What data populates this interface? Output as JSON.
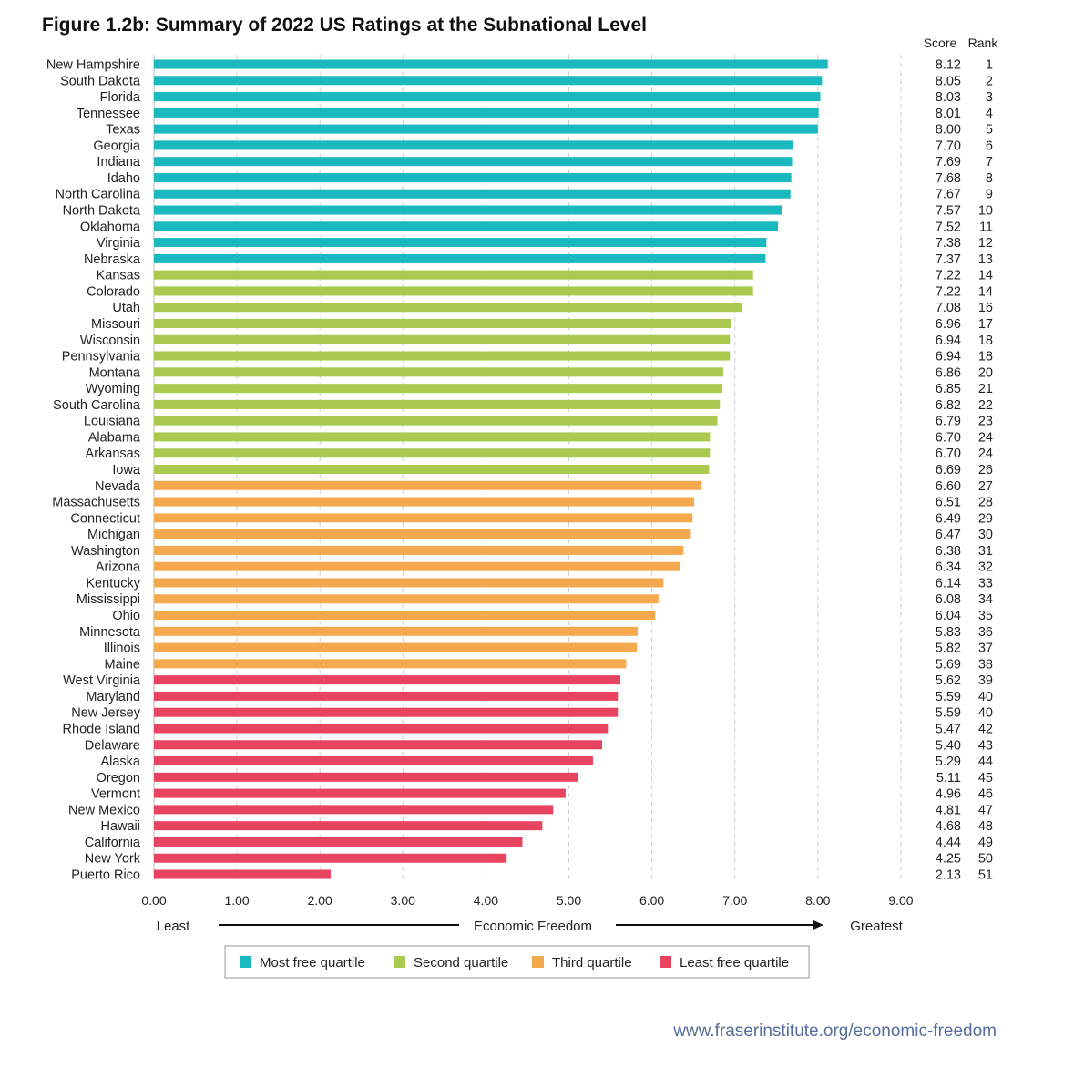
{
  "title": "Figure 1.2b: Summary of 2022 US Ratings at the Subnational Level",
  "source_url": "www.fraserinstitute.org/economic-freedom",
  "colors": {
    "most_free": "#1ab8bf",
    "second": "#a9c94f",
    "third": "#f5a94e",
    "least_free": "#e8435f",
    "grid": "#cfcfcf",
    "text": "#222222",
    "url": "#5a6e9a"
  },
  "chart_data": {
    "type": "bar",
    "orientation": "horizontal",
    "title": "Figure 1.2b: Summary of 2022 US Ratings at the Subnational Level",
    "xlim": [
      0,
      9
    ],
    "xticks": [
      "0.00",
      "1.00",
      "2.00",
      "3.00",
      "4.00",
      "5.00",
      "6.00",
      "7.00",
      "8.00",
      "9.00"
    ],
    "axis_labels": {
      "left": "Least",
      "center": "Economic Freedom",
      "right": "Greatest"
    },
    "table_headers": {
      "score": "Score",
      "rank": "Rank"
    },
    "legend": [
      {
        "key": "most_free",
        "label": "Most free quartile"
      },
      {
        "key": "second",
        "label": "Second quartile"
      },
      {
        "key": "third",
        "label": "Third quartile"
      },
      {
        "key": "least_free",
        "label": "Least free quartile"
      }
    ],
    "rows": [
      {
        "state": "New Hampshire",
        "score": 8.12,
        "score_label": "8.12",
        "rank": "1",
        "quartile": "most_free"
      },
      {
        "state": "South Dakota",
        "score": 8.05,
        "score_label": "8.05",
        "rank": "2",
        "quartile": "most_free"
      },
      {
        "state": "Florida",
        "score": 8.03,
        "score_label": "8.03",
        "rank": "3",
        "quartile": "most_free"
      },
      {
        "state": "Tennessee",
        "score": 8.01,
        "score_label": "8.01",
        "rank": "4",
        "quartile": "most_free"
      },
      {
        "state": "Texas",
        "score": 8.0,
        "score_label": "8.00",
        "rank": "5",
        "quartile": "most_free"
      },
      {
        "state": "Georgia",
        "score": 7.7,
        "score_label": "7.70",
        "rank": "6",
        "quartile": "most_free"
      },
      {
        "state": "Indiana",
        "score": 7.69,
        "score_label": "7.69",
        "rank": "7",
        "quartile": "most_free"
      },
      {
        "state": "Idaho",
        "score": 7.68,
        "score_label": "7.68",
        "rank": "8",
        "quartile": "most_free"
      },
      {
        "state": "North Carolina",
        "score": 7.67,
        "score_label": "7.67",
        "rank": "9",
        "quartile": "most_free"
      },
      {
        "state": "North Dakota",
        "score": 7.57,
        "score_label": "7.57",
        "rank": "10",
        "quartile": "most_free"
      },
      {
        "state": "Oklahoma",
        "score": 7.52,
        "score_label": "7.52",
        "rank": "11",
        "quartile": "most_free"
      },
      {
        "state": "Virginia",
        "score": 7.38,
        "score_label": "7.38",
        "rank": "12",
        "quartile": "most_free"
      },
      {
        "state": "Nebraska",
        "score": 7.37,
        "score_label": "7.37",
        "rank": "13",
        "quartile": "most_free"
      },
      {
        "state": "Kansas",
        "score": 7.22,
        "score_label": "7.22",
        "rank": "14",
        "quartile": "second"
      },
      {
        "state": "Colorado",
        "score": 7.22,
        "score_label": "7.22",
        "rank": "14",
        "quartile": "second"
      },
      {
        "state": "Utah",
        "score": 7.08,
        "score_label": "7.08",
        "rank": "16",
        "quartile": "second"
      },
      {
        "state": "Missouri",
        "score": 6.96,
        "score_label": "6.96",
        "rank": "17",
        "quartile": "second"
      },
      {
        "state": "Wisconsin",
        "score": 6.94,
        "score_label": "6.94",
        "rank": "18",
        "quartile": "second"
      },
      {
        "state": "Pennsylvania",
        "score": 6.94,
        "score_label": "6.94",
        "rank": "18",
        "quartile": "second"
      },
      {
        "state": "Montana",
        "score": 6.86,
        "score_label": "6.86",
        "rank": "20",
        "quartile": "second"
      },
      {
        "state": "Wyoming",
        "score": 6.85,
        "score_label": "6.85",
        "rank": "21",
        "quartile": "second"
      },
      {
        "state": "South Carolina",
        "score": 6.82,
        "score_label": "6.82",
        "rank": "22",
        "quartile": "second"
      },
      {
        "state": "Louisiana",
        "score": 6.79,
        "score_label": "6.79",
        "rank": "23",
        "quartile": "second"
      },
      {
        "state": "Alabama",
        "score": 6.7,
        "score_label": "6.70",
        "rank": "24",
        "quartile": "second"
      },
      {
        "state": "Arkansas",
        "score": 6.7,
        "score_label": "6.70",
        "rank": "24",
        "quartile": "second"
      },
      {
        "state": "Iowa",
        "score": 6.69,
        "score_label": "6.69",
        "rank": "26",
        "quartile": "second"
      },
      {
        "state": "Nevada",
        "score": 6.6,
        "score_label": "6.60",
        "rank": "27",
        "quartile": "third"
      },
      {
        "state": "Massachusetts",
        "score": 6.51,
        "score_label": "6.51",
        "rank": "28",
        "quartile": "third"
      },
      {
        "state": "Connecticut",
        "score": 6.49,
        "score_label": "6.49",
        "rank": "29",
        "quartile": "third"
      },
      {
        "state": "Michigan",
        "score": 6.47,
        "score_label": "6.47",
        "rank": "30",
        "quartile": "third"
      },
      {
        "state": "Washington",
        "score": 6.38,
        "score_label": "6.38",
        "rank": "31",
        "quartile": "third"
      },
      {
        "state": "Arizona",
        "score": 6.34,
        "score_label": "6.34",
        "rank": "32",
        "quartile": "third"
      },
      {
        "state": "Kentucky",
        "score": 6.14,
        "score_label": "6.14",
        "rank": "33",
        "quartile": "third"
      },
      {
        "state": "Mississippi",
        "score": 6.08,
        "score_label": "6.08",
        "rank": "34",
        "quartile": "third"
      },
      {
        "state": "Ohio",
        "score": 6.04,
        "score_label": "6.04",
        "rank": "35",
        "quartile": "third"
      },
      {
        "state": "Minnesota",
        "score": 5.83,
        "score_label": "5.83",
        "rank": "36",
        "quartile": "third"
      },
      {
        "state": "Illinois",
        "score": 5.82,
        "score_label": "5.82",
        "rank": "37",
        "quartile": "third"
      },
      {
        "state": "Maine",
        "score": 5.69,
        "score_label": "5.69",
        "rank": "38",
        "quartile": "third"
      },
      {
        "state": "West Virginia",
        "score": 5.62,
        "score_label": "5.62",
        "rank": "39",
        "quartile": "least_free"
      },
      {
        "state": "Maryland",
        "score": 5.59,
        "score_label": "5.59",
        "rank": "40",
        "quartile": "least_free"
      },
      {
        "state": "New Jersey",
        "score": 5.59,
        "score_label": "5.59",
        "rank": "40",
        "quartile": "least_free"
      },
      {
        "state": "Rhode Island",
        "score": 5.47,
        "score_label": "5.47",
        "rank": "42",
        "quartile": "least_free"
      },
      {
        "state": "Delaware",
        "score": 5.4,
        "score_label": "5.40",
        "rank": "43",
        "quartile": "least_free"
      },
      {
        "state": "Alaska",
        "score": 5.29,
        "score_label": "5.29",
        "rank": "44",
        "quartile": "least_free"
      },
      {
        "state": "Oregon",
        "score": 5.11,
        "score_label": "5.11",
        "rank": "45",
        "quartile": "least_free"
      },
      {
        "state": "Vermont",
        "score": 4.96,
        "score_label": "4.96",
        "rank": "46",
        "quartile": "least_free"
      },
      {
        "state": "New Mexico",
        "score": 4.81,
        "score_label": "4.81",
        "rank": "47",
        "quartile": "least_free"
      },
      {
        "state": "Hawaii",
        "score": 4.68,
        "score_label": "4.68",
        "rank": "48",
        "quartile": "least_free"
      },
      {
        "state": "California",
        "score": 4.44,
        "score_label": "4.44",
        "rank": "49",
        "quartile": "least_free"
      },
      {
        "state": "New York",
        "score": 4.25,
        "score_label": "4.25",
        "rank": "50",
        "quartile": "least_free"
      },
      {
        "state": "Puerto Rico",
        "score": 2.13,
        "score_label": "2.13",
        "rank": "51",
        "quartile": "least_free"
      }
    ]
  }
}
